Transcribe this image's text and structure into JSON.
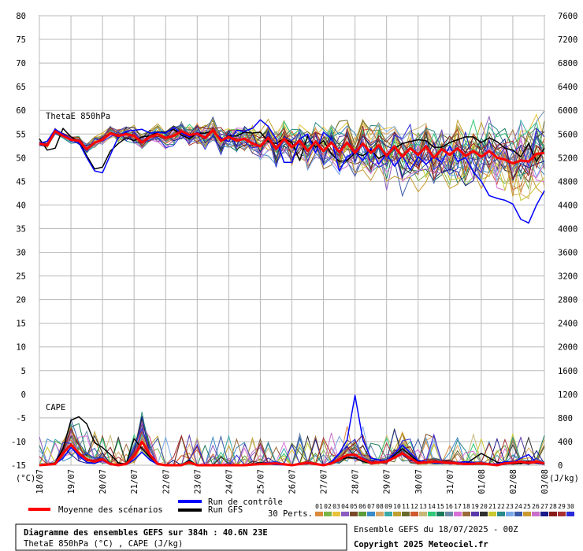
{
  "chart_data": {
    "type": "line",
    "title": "Diagramme des ensembles GEFS sur 384h : 40.6N 23E",
    "subtitle": "ThetaE 850hPa (°C) , CAPE (J/kg)",
    "run_info": "Ensemble GEFS du 18/07/2025 - 00Z",
    "copyright": "Copyright 2025 Meteociel.fr",
    "panel_labels": {
      "thetae": "ThetaE 850hPa",
      "cape": "CAPE"
    },
    "left_axis": {
      "unit": "(°C)",
      "ylim": [
        -15,
        80
      ],
      "ticks": [
        80,
        75,
        70,
        65,
        60,
        55,
        50,
        45,
        40,
        35,
        30,
        25,
        20,
        15,
        10,
        5,
        0,
        -5,
        -10,
        -15
      ]
    },
    "right_axis": {
      "unit": "(J/kg)",
      "ylim": [
        0,
        7600
      ],
      "ticks": [
        7600,
        7200,
        6800,
        6400,
        6000,
        5600,
        5200,
        4800,
        4400,
        4000,
        3600,
        3200,
        2800,
        2400,
        2000,
        1600,
        1200,
        800,
        400,
        0
      ]
    },
    "x_dates": [
      "18/07",
      "19/07",
      "20/07",
      "21/07",
      "22/07",
      "23/07",
      "24/07",
      "25/07",
      "26/07",
      "27/07",
      "28/07",
      "29/07",
      "30/07",
      "31/07",
      "01/08",
      "02/08",
      "03/08"
    ],
    "x_unit": "hours since run start",
    "x_range": [
      0,
      384
    ],
    "legend": {
      "mean": "Moyenne des scénarios",
      "control": "Run de contrôle",
      "gfs": "Run GFS",
      "perts_label": "30 Perts.",
      "pert_ids": [
        "01",
        "02",
        "03",
        "04",
        "05",
        "06",
        "07",
        "08",
        "09",
        "10",
        "11",
        "12",
        "13",
        "14",
        "15",
        "16",
        "17",
        "18",
        "19",
        "20",
        "21",
        "22",
        "23",
        "24",
        "25",
        "26",
        "27",
        "28",
        "29",
        "30"
      ],
      "pert_colors": [
        "#d98a3a",
        "#7ab648",
        "#e8c33a",
        "#8a5cc0",
        "#7a4a2a",
        "#5a9a3a",
        "#3a8ac8",
        "#d8a868",
        "#3aa8a8",
        "#c0a030",
        "#6a6a2a",
        "#d05a30",
        "#c8b878",
        "#30c878",
        "#1a7a5a",
        "#6a8aa8",
        "#d870d8",
        "#9a6a3a",
        "#5a3aa8",
        "#303030",
        "#c8c830",
        "#2a8a8a",
        "#78a8e8",
        "#3a5aa8",
        "#c89a30",
        "#c870c8",
        "#1a1a8a",
        "#8a1a1a",
        "#a83030",
        "#2a2ad8"
      ]
    },
    "series_colors": {
      "mean": "#ff0000",
      "control": "#0000ff",
      "gfs": "#000000"
    },
    "series": [
      {
        "name": "Moyenne des scénarios",
        "panel": "thetae",
        "x": [
          0,
          6,
          12,
          18,
          24,
          30,
          36,
          42,
          48,
          54,
          60,
          66,
          72,
          78,
          84,
          90,
          96,
          102,
          108,
          114,
          120,
          126,
          132,
          138,
          144,
          150,
          156,
          162,
          168,
          174,
          180,
          186,
          192,
          198,
          204,
          210,
          216,
          222,
          228,
          234,
          240,
          246,
          252,
          258,
          264,
          270,
          276,
          282,
          288,
          294,
          300,
          306,
          312,
          318,
          324,
          330,
          336,
          342,
          348,
          354,
          360,
          366,
          372,
          378,
          384
        ],
        "values": [
          53,
          52.6,
          55.6,
          54.6,
          53.8,
          53.6,
          51.8,
          53.2,
          53.8,
          55.2,
          54.6,
          55,
          54.6,
          53.2,
          54.4,
          55,
          54.2,
          54.6,
          55.6,
          54.8,
          55.1,
          54.2,
          55.8,
          53.6,
          54.4,
          53.6,
          54,
          53,
          52.4,
          54.2,
          51.8,
          54,
          52.2,
          53.6,
          51.4,
          53.4,
          51.4,
          53.2,
          51.2,
          53.2,
          51,
          53,
          51,
          52.6,
          50.4,
          52.4,
          50.2,
          52,
          50.6,
          52.4,
          50,
          51.8,
          50.6,
          52,
          50.4,
          51.4,
          50.2,
          51.4,
          50,
          49.6,
          48.8,
          49.4,
          49.2,
          50.8,
          51
        ]
      },
      {
        "name": "Run de contrôle",
        "panel": "thetae",
        "x": [
          0,
          6,
          12,
          18,
          24,
          30,
          36,
          42,
          48,
          54,
          60,
          66,
          72,
          78,
          84,
          90,
          96,
          102,
          108,
          114,
          120,
          126,
          132,
          138,
          144,
          150,
          156,
          162,
          168,
          174,
          180,
          186,
          192,
          198,
          204,
          210,
          216,
          222,
          228,
          234,
          240,
          246,
          252,
          258,
          264,
          270,
          276,
          282,
          288,
          294,
          300,
          306,
          312,
          318,
          324,
          330,
          336,
          342,
          348,
          354,
          360,
          366,
          372,
          378,
          384
        ],
        "values": [
          53,
          53.5,
          56,
          55,
          54,
          53.2,
          50,
          47.2,
          46.8,
          50.6,
          54.4,
          55.6,
          55.8,
          56,
          55.2,
          55.4,
          55.2,
          56.4,
          55.2,
          54.4,
          55.4,
          54,
          55.6,
          54.2,
          53.4,
          55.8,
          55.6,
          56.2,
          58,
          56.6,
          54,
          49,
          49,
          54,
          55,
          51,
          55.4,
          54,
          47.2,
          50.2,
          51.2,
          49.4,
          52,
          48.6,
          50.8,
          48.2,
          50.4,
          47.4,
          50.2,
          48.6,
          50.2,
          49,
          52.4,
          49.2,
          50,
          47,
          45,
          42,
          41.4,
          41,
          40.2,
          37,
          36.2,
          40,
          43
        ]
      },
      {
        "name": "Run GFS",
        "panel": "thetae",
        "x": [
          0,
          6,
          12,
          18,
          24,
          30,
          36,
          42,
          48,
          54,
          60,
          66,
          72,
          78,
          84,
          90,
          96,
          102,
          108,
          114,
          120,
          126,
          132,
          138,
          144,
          150,
          156,
          162,
          168,
          174,
          180,
          186,
          192,
          198,
          204,
          210,
          216,
          222,
          228,
          234,
          240,
          246,
          252,
          258,
          264,
          270,
          276,
          282,
          288,
          294,
          300,
          306,
          312,
          318,
          324,
          330,
          336,
          342,
          348,
          354,
          360,
          366,
          372,
          378,
          384
        ],
        "values": [
          54,
          51.6,
          52,
          56.2,
          54.4,
          53.4,
          50.4,
          47.6,
          48,
          51.4,
          53,
          54.2,
          53.6,
          54.4,
          54.6,
          55.4,
          55.4,
          56,
          54.8,
          54,
          55.2,
          55.2,
          55.6,
          53.6,
          54.6,
          54.6,
          55.4,
          55.2,
          55.4,
          53.4,
          53,
          54,
          53.2,
          49.4,
          54.6,
          52.2,
          53.6,
          50.8,
          49.2,
          49.4,
          51,
          50.4,
          51.6,
          49.8,
          50.8,
          52,
          53,
          53.4,
          53.8,
          53.6,
          52.2,
          52.2,
          53.2,
          53.8,
          54.4,
          54.4,
          53.2,
          54.2,
          53.4,
          52,
          51.6,
          50.2,
          53,
          49.2,
          52
        ]
      },
      {
        "name": "Moyenne des scénarios",
        "panel": "cape",
        "x": [
          0,
          12,
          18,
          24,
          30,
          36,
          42,
          48,
          54,
          60,
          66,
          72,
          78,
          84,
          90,
          96,
          102,
          108,
          114,
          120,
          132,
          144,
          156,
          168,
          180,
          192,
          204,
          210,
          216,
          222,
          228,
          234,
          240,
          246,
          252,
          264,
          276,
          288,
          300,
          312,
          324,
          336,
          348,
          354,
          360,
          366,
          372,
          378,
          384
        ],
        "values": [
          0,
          20,
          200,
          350,
          200,
          100,
          60,
          100,
          20,
          0,
          20,
          150,
          400,
          180,
          20,
          0,
          0,
          0,
          50,
          0,
          0,
          0,
          0,
          20,
          30,
          0,
          40,
          20,
          0,
          30,
          100,
          170,
          180,
          100,
          40,
          60,
          200,
          40,
          60,
          40,
          20,
          30,
          0,
          30,
          40,
          60,
          40,
          60,
          30
        ]
      },
      {
        "name": "Run de contrôle",
        "panel": "cape",
        "x": [
          0,
          12,
          18,
          24,
          30,
          36,
          42,
          48,
          54,
          60,
          66,
          72,
          78,
          84,
          90,
          96,
          102,
          108,
          114,
          120,
          132,
          144,
          156,
          168,
          180,
          192,
          204,
          210,
          216,
          222,
          228,
          234,
          240,
          246,
          252,
          264,
          276,
          288,
          300,
          312,
          324,
          336,
          348,
          354,
          360,
          366,
          372,
          378,
          384
        ],
        "values": [
          0,
          20,
          120,
          300,
          160,
          50,
          30,
          80,
          10,
          0,
          10,
          90,
          220,
          90,
          10,
          0,
          0,
          0,
          60,
          0,
          0,
          0,
          0,
          30,
          10,
          0,
          40,
          20,
          0,
          60,
          200,
          430,
          1180,
          430,
          120,
          60,
          340,
          80,
          40,
          30,
          60,
          30,
          20,
          60,
          40,
          120,
          180,
          40,
          20
        ]
      },
      {
        "name": "Run GFS",
        "panel": "cape",
        "x": [
          0,
          12,
          18,
          24,
          30,
          36,
          42,
          48,
          54,
          60,
          66,
          72,
          78,
          84,
          90,
          96,
          102,
          108,
          114,
          120,
          132,
          144,
          156,
          168,
          180,
          192,
          204,
          210,
          216,
          222,
          228,
          234,
          240,
          246,
          252,
          264,
          276,
          288,
          300,
          312,
          324,
          336,
          348,
          354,
          360,
          366,
          372,
          378,
          384
        ],
        "values": [
          0,
          40,
          280,
          760,
          820,
          700,
          380,
          300,
          180,
          40,
          20,
          450,
          280,
          140,
          20,
          0,
          0,
          0,
          80,
          0,
          0,
          0,
          0,
          40,
          20,
          0,
          30,
          10,
          0,
          40,
          90,
          130,
          120,
          60,
          30,
          60,
          280,
          60,
          60,
          40,
          20,
          200,
          50,
          30,
          20,
          30,
          60,
          40,
          20
        ]
      }
    ]
  }
}
